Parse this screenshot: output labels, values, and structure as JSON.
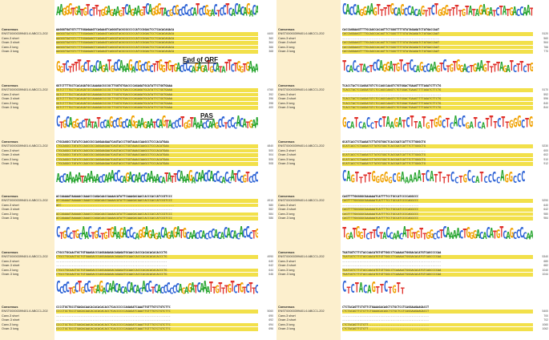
{
  "row_labels": [
    "Consensus",
    "ENST00000399401.6 ABCC1-202",
    "Canx-3 short",
    "Ovarr-3 short",
    "Canx-3 long",
    "Ovarr-3 long"
  ],
  "colors": {
    "A": "#22a32a",
    "C": "#2d63d6",
    "G": "#f0a100",
    "T": "#e0302a",
    "highlight": "#f2e04a",
    "label_bg": "#fcefcd"
  },
  "annotations": {
    "end_of_orf": "End of ORF",
    "pas": "PAS"
  },
  "left_blocks": [
    {
      "logo": "AAGGGTGATGTCTTTGGAGAAGTCAGAAGTCAGGGTACGCGCCCCCATCCGGACTCCTCACACAGACA",
      "consensus": "AAGGGTGATGTCTTTGGAGAAGTCAGAAGTCAGGGTACGCGCCCCCATCCGGACTCCTCACACAGACA",
      "rows": [
        "AAGGGTGATGTCTTTGGAGAAGTCAGAAGTCAGGGTACGCGCCCCCATCCGGACTCCTCACACAGACA",
        "AAGGGTGATGTCTTTGGAGAAGTCAGAAGTCAGGGTACGCGCCCCCATCCGGACTCCTCACACAGACA",
        "AAGGGTGATGTCTTTGGAGAAGTCAGAAGTCAGGGTACGCGCCCCCATCCGGACTCCTCACACAGACA",
        "AAGGGTGATGTCTTTGGAGAAGTCAGAAGTCAGGGTACGCGCCCCCATCCGGACTCCTCACACAGACA",
        "AAGGGTGATGTCTTTGGAGAAGTCAGAAGTCAGGGTACGCGCCCCCATCCGGACTCCTCACACAGACA"
      ],
      "numbers": [
        "4400",
        "360",
        "364",
        "366",
        "368"
      ]
    },
    {
      "logo": "GGTCTTTTGCTCACAGATGCCAAAGACGCCGCTTGGTGTGACCCCAGAGATGCATATTCTGGTGAAA",
      "consensus": "GGTCTTTTGCTCACAGATGCCAAAGACGCCGCTTGGTGTGACCCCAGAGATGCATATTCTGGTGAAA",
      "rows": [
        "GGTCTTTTGCTCACAGATGCCAAAGACGCCGCTTGGTGTGACCCCAGAGATGCATATTCTGGTGAAA",
        "GGTCTTTTGCTCACAGATGCCAAAGACGCCGCTTGGTGTGACCCCAGAGATGCATATTCTGGTGAAA",
        "GGTCTTTTGCTCACAGATGCCAAAGACGCCGCTTGGTGTGACCCCAGAGATGCATATTCTGGTGAAA",
        "GGTCTTTTGCTCACAGATGCCAAAGACGCCGCTTGGTGTGACCCCAGAGATGCATATTCTGGTGAAA",
        "GGTCTTTTGCTCACAGATGCCAAAGACGCCGCTTGGTGTGACCCCAGAGATGCATATTCTGGTGAAA"
      ],
      "numbers": [
        "4760",
        "392",
        "396",
        "398",
        "400"
      ]
    },
    {
      "logo": "CTGCAGGCCTATATCCAGCCGCCAGGAAGAATCAGTACCCTGGTAAACCAAGCCTCCCACATGAA",
      "consensus": "CTGCAGGCCTATATCCAGCCGCCAGGAAGAATCAGTACCCTGGTAAACCAAGCCTCCCACATGAA",
      "rows": [
        "CTGCAGGCCTATATCCAGCCGCCAGGAAGAATCAGTACCCTGGTAAACCAAGCCTCCCACATGAA",
        "CTGCAGGCCTATATCCAGCCGCCAGGAAGAATCAGTACCCTGGTAAACCAAGCCTCCCACATGAA",
        "CTGCAGGCCTATATCCAGCCGCCAGGAAGAATCAGTACCCTGGTAAACCAAGCCTCCCACATGAA",
        "CTGCAGGCCTATATCCAGCCGCCAGGAAGAATCAGTACCCTGGTAAACCAAGCCTCCCACATGAA",
        "CTGCAGGCCTATATCCAGCCGCCAGGAAGAATCAGTACCCTGGTAAACCAAGCCTCCCACATGAA"
      ],
      "numbers": [
        "4840",
        "500",
        "504",
        "506",
        "508"
      ]
    },
    {
      "logo": "ACCAAAAATAAAAACCAAACCCAGACAACCAAAACATATTCAAAGACAACCACCCACCATCCGTCCC",
      "consensus": "ACCAAAAATAAAAACCAAACCCAGACAACCAAAACATATTCAAAGACAACCACCCACCATCCGTCCC",
      "rows": [
        "ACCAAAAATAAAAACCAAACCCAGACAACCAAAACATATTCAAAGACAACCACCCACCATCCGTCCC",
        "ACC-----------------------------------------------------------------",
        "-------------------------------------------------------------------",
        "ACCAAAAATAAAAACCAAACCCAGACAACCAAAACATATTCAAAGACAACCACCCACCATCCGTCCC",
        "ACCAAAAATAAAAACCAAACCCAGACAACCAAAACATATTCAAAGACAACCACCCACCATCCGTCCC"
      ],
      "numbers": [
        "4910",
        "580",
        "582",
        "584",
        "586"
      ]
    },
    {
      "logo": "CTGCCTGCAACTGCTGTGAAGACCCAGGAGAGACAGAGATGCAACCACCCACACACACACCCTG",
      "consensus": "CTGCCTGCAACTGCTGTGAAGACCCAGGAGAGACAGAGATGCAACCACCCACACACACACCCTG",
      "rows": [
        "CTGCCTGCAACTGCTGTGAAGACCCAGGAGAGACAGAGATGCAACCACCCACACACACACCCTG",
        "----------------------------------------------------------------",
        "----------------------------------------------------------------",
        "CTGCCTGCAACTGCTGTGAAGACCCAGGAGAGACAGAGATGCAACCACCCACACACACACCCTG",
        "CTGCCTGCAACTGCTGTGAAGACCCAGGAGAGACAGAGATGCAACCACCCACACACACACCCTG"
      ],
      "numbers": [
        "4990",
        "640",
        "642",
        "644",
        "646"
      ]
    },
    {
      "logo": "CCCCTGCTGCCTGAGACAACACACACACACCTCACCCCCCAGAGATCAAATTGTTTGTCTGTCTTC",
      "consensus": "CCCCTGCTGCCTGAGACAACACACACACACCTCACCCCCCAGAGATCAAATTGTTTGTCTGTCTTC",
      "rows": [
        "CCCCTGCTGCCTGAGACAACACACACACACCTCACCCCCCAGAGATCAAATTGTTTGTCTGTCTTC",
        "------------------------------------------------------------------",
        "------------------------------------------------------------------",
        "CCCCTGCTGCCTGAGACAACACACACACACCTCACCCCCCAGAGATCAAATTGTTTGTCTGTCTTC",
        "CCCCTGCTGCCTGAGACAACACACACACACCTCACCCCCCAGAGATCAAATTGTTTGTCTGTCTTC"
      ],
      "numbers": [
        "5060",
        "690",
        "692",
        "694",
        "696"
      ]
    }
  ],
  "right_blocks": [
    {
      "logo": "CACCAGGAAGTTTTGCAGCCACAGTTCTGGGTTTTGTATAGAGATCTATGACCAAT",
      "consensus": "CACCAGGAAGTTTTGCAGCCACAGTTCTGGGTTTTGTATAGAGATCTATGACCAAT",
      "rows": [
        "CACCAGGAAGTTTTGCAGCCACAGTTCTGGGTTTTGTATAGAGATCTATGACCAAT",
        "--------------------------------------------------------",
        "CACCAGGAAGTTTTGCAGCCACAGTTCTGGGTTTTGTATAGAGATCTATGACCAAT",
        "CACCAGGAAGTTTTGCAGCCACAGTTCTGGGTTTTGTATAGAGATCTATGACCAAT",
        "CACCAGGAAGTTTTGCAGCCACAGTTCTGGGTTTTGTATAGAGATCTATGACCAAT"
      ],
      "numbers": [
        "5120",
        "560",
        "564",
        "766",
        "770"
      ]
    },
    {
      "logo": "TCACCTACTCCAGGATGTCTCCAGCCAAGTCTGTGGACTGAAGTTTTAGATCTTCTG",
      "consensus": "TCACCTACTCCAGGATGTCTCCAGCCAAGTCTGTGGACTGAAGTTTTAGATCTTCTG",
      "rows": [
        "TCACCTACTCCAGGATGTCTCCAGCCAAGTCTGTGGACTGAAGTTTTAGATCTTCTG",
        "---------------------------------------------------------",
        "TCACCTACTCCAGGATGTCTCCAGCCAAGTCTGTGGACTGAAGTTTTAGATCTTCTG",
        "TCACCTACTCCAGGATGTCTCCAGCCAAGTCTGTGGACTGAAGTTTTAGATCTTCTG",
        "TCACCTACTCCAGGATGTCTCCAGCCAAGTCTGTGGACTGAAGTTTTAGATCTTCTG"
      ],
      "numbers": [
        "5170",
        "592",
        "596",
        "840",
        "844"
      ]
    },
    {
      "logo": "GCATCACCTCTAAGATCTTATGTGGCTCACCGATCATTTCTTGGGCTG",
      "consensus": "GCATCACCTCTAAGATCTTATGTGGCTCACCGATCATTTCTTGGGCTG",
      "rows": [
        "GCATCACCTCTAAGATCTTATGTGGCTCACCGATCATTTCTTGGGCTG",
        "------------------------------------------------",
        "GCATCACCTCTAAGATCTTATGTGGCTCACCGATCATTTCTTGGGCTG",
        "GCATCACCTCTAAGATCTTATGTGGCTCACCGATCATTTCTTGGGCTG",
        "GCATCACCTCTAAGATCTTATGTGGCTCACCGATCATTTCTTGGGCTG"
      ],
      "numbers": [
        "5230",
        "600",
        "602",
        "910",
        "912"
      ]
    },
    {
      "logo": "CAGTTTTGGGGGCGAAAAATCATTTTCCTGCCATCCCCAGGCCC",
      "consensus": "CAGTTTTGGGGGCGAAAAATCATTTTCCTGCCATCCCCAGGCCC",
      "rows": [
        "CAGTTTTGGGGGCGAAAAATCATTTTCCTGCCATCCCCAGGCCC",
        "--------------------------------------------",
        "CAGTTTTGGGGGCGAAAAATCATTTTCCTGCCATCCCCAGGCCC",
        "CAGTTTTGGGGGCGAAAAATCATTTTCCTGCCATCCCCAGGCCC",
        "CAGTTTTGGGGGCGAAAAATCATTTTCCTGCCATCCCCAGGCCC"
      ],
      "numbers": [
        "5290",
        "640",
        "642",
        "980",
        "984"
      ]
    },
    {
      "logo": "TGATGGTCTTCTACCAACATGTGTTGGCCTCAAAACTGGGACACATGTCAGCCCCAA",
      "consensus": "TGATGGTCTTCTACCAACATGTGTTGGCCTCAAAACTGGGACACATGTCAGCCCCAA",
      "rows": [
        "TGATGGTCTTCTACCAACATGTGTTGGCCTCAAAACTGGGACACATGTCAGCCCCAA",
        "---------------------------------------------------------",
        "---------------------------------------------------------",
        "TGATGGTCTTCTACCAACATGTGTTGGCCTCAAAACTGGGACACATGTCAGCCCCAA",
        "TGATGGTCTTCTACCAACATGTGTTGGCCTCAAAACTGGGACACATGTCAGCCCCAA"
      ],
      "numbers": [
        "5340",
        "680",
        "682",
        "1040",
        "1044"
      ]
    },
    {
      "logo": "CTCTACAGTTCTGTT",
      "consensus": "CTCTACAGTTCTGTTCTGAAAGACAGCTCTGCTCCTCAGGAAGAAGACCT",
      "rows": [
        "CTCTACAGTTCTGTTCTGAAAGACAGCTCTGCTCCTCAGGAAGAAGACCT",
        "--------------------------------------------------",
        "--------------------------------------------------",
        "CTCTACAGTTCTGTT-----------------------------------",
        "CTCTACAGTTCTGTT-----------------------------------"
      ],
      "numbers": [
        "5400",
        "700",
        "702",
        "1060",
        "1062"
      ]
    }
  ]
}
